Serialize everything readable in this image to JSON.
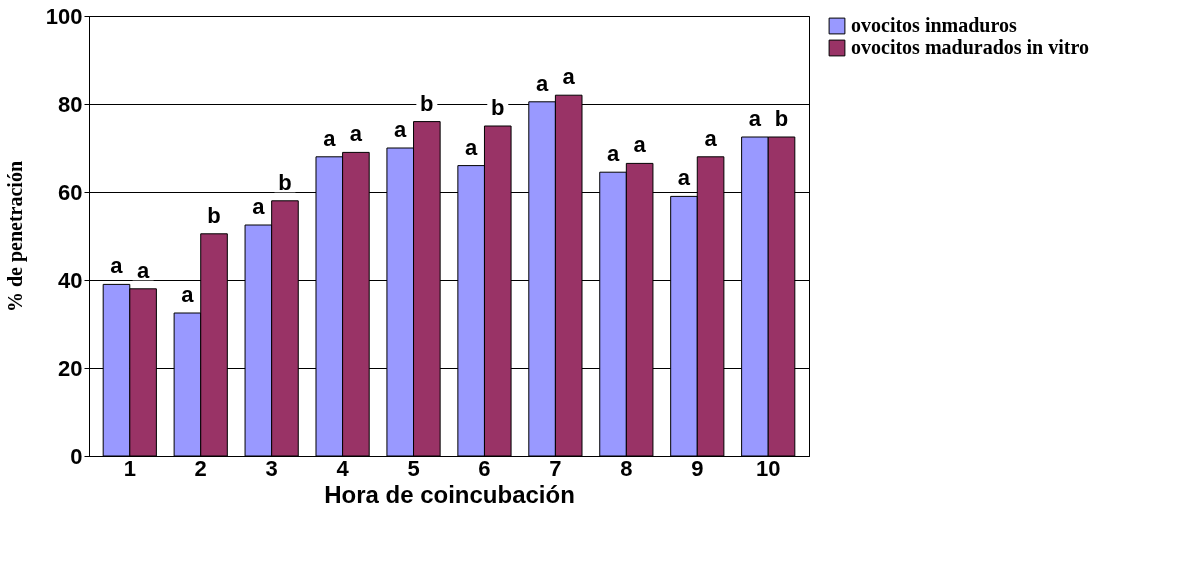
{
  "chart_data": {
    "type": "bar",
    "xlabel": "Hora de coincubación",
    "ylabel": "% de   penetración",
    "categories": [
      "1",
      "2",
      "3",
      "4",
      "5",
      "6",
      "7",
      "8",
      "9",
      "10"
    ],
    "series": [
      {
        "name": "ovocitos inmaduros",
        "color": "#9999ff",
        "values": [
          39,
          32.5,
          52.5,
          68,
          70,
          66,
          80.5,
          64.5,
          59,
          72.5
        ],
        "value_labels": [
          "a",
          "a",
          "a",
          "a",
          "a",
          "a",
          "a",
          "a",
          "a",
          "a"
        ]
      },
      {
        "name": "ovocitos madurados in vitro",
        "color": "#993366",
        "values": [
          38,
          50.5,
          58,
          69,
          76,
          75,
          82,
          66.5,
          68,
          72.5
        ],
        "value_labels": [
          "a",
          "b",
          "b",
          "a",
          "b",
          "b",
          "a",
          "a",
          "a",
          "b"
        ]
      }
    ],
    "ylim": [
      0,
      100
    ],
    "yticks": [
      0,
      20,
      40,
      60,
      80,
      100
    ],
    "grid": "y",
    "legend": "top right"
  }
}
